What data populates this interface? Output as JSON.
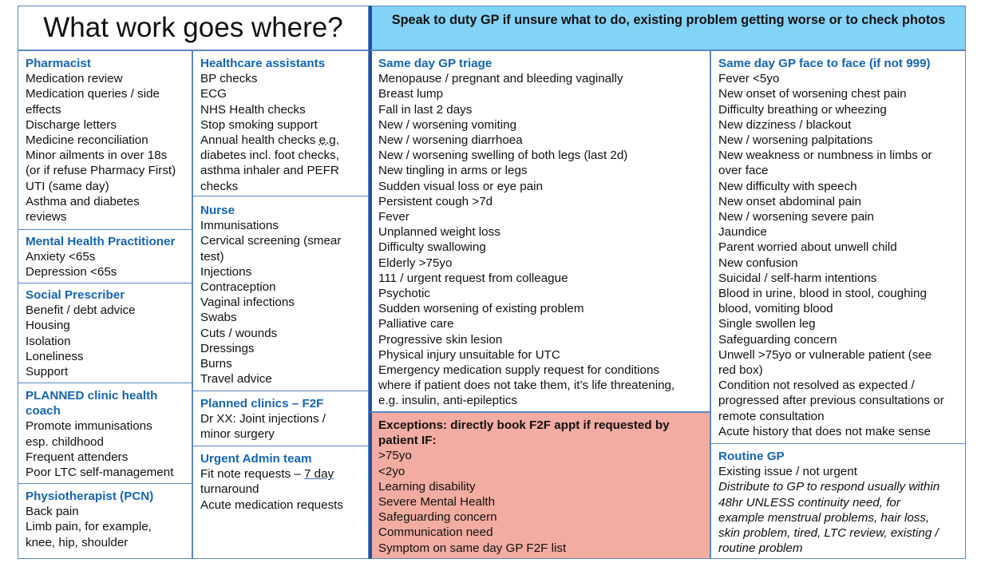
{
  "title": "What work goes where?",
  "banner": "Speak to duty GP if unsure what to do, existing problem getting worse or to check photos",
  "left": {
    "pharmacist": {
      "title": "Pharmacist",
      "items": [
        "Medication review",
        "Medication queries / side",
        "effects",
        "Discharge letters",
        "Medicine reconciliation",
        "Minor ailments in over 18s",
        "(or if refuse Pharmacy First)",
        "UTI (same day)",
        "Asthma and diabetes",
        "reviews"
      ]
    },
    "mental_health": {
      "title": "Mental Health Practitioner",
      "items": [
        "Anxiety <65s",
        "Depression <65s"
      ]
    },
    "social": {
      "title": "Social Prescriber",
      "items": [
        "Benefit / debt advice",
        "Housing",
        "Isolation",
        "Loneliness",
        "Support"
      ]
    },
    "planned_coach": {
      "title_lines": [
        "PLANNED clinic health",
        "coach"
      ],
      "items": [
        "Promote immunisations",
        "esp. childhood",
        "Frequent attenders",
        "Poor LTC self-management"
      ]
    },
    "physio": {
      "title": "Physiotherapist (PCN)",
      "items": [
        "Back pain",
        "Limb pain, for example,",
        "knee, hip, shoulder"
      ]
    }
  },
  "middle": {
    "hca": {
      "title": "Healthcare assistants",
      "items": [
        "BP checks",
        "ECG",
        "NHS Health checks",
        "Stop smoking support"
      ],
      "annual_pre": "Annual health checks ",
      "annual_eg": "e.g.",
      "items2": [
        "diabetes incl. foot checks,",
        "asthma inhaler and PEFR",
        "checks"
      ]
    },
    "nurse": {
      "title": "Nurse",
      "items": [
        "Immunisations",
        "Cervical screening (smear",
        "test)",
        "Injections",
        "Contraception",
        "Vaginal infections",
        "Swabs",
        "Cuts / wounds",
        "Dressings",
        "Burns",
        "Travel advice"
      ]
    },
    "planned_f2f": {
      "title": "Planned clinics – F2F",
      "items": [
        "Dr XX: Joint injections /",
        "minor surgery"
      ]
    },
    "urgent_admin": {
      "title": "Urgent Admin team",
      "fit_pre": "Fit note requests – ",
      "fit_u": "7 day",
      "items": [
        "turnaround",
        "Acute medication requests"
      ]
    }
  },
  "triage": {
    "title": "Same day GP triage",
    "items": [
      "Menopause / pregnant and bleeding vaginally",
      "Breast lump",
      "Fall in last 2 days",
      "New / worsening vomiting",
      "New / worsening diarrhoea",
      "New / worsening swelling of both legs (last 2d)",
      "New tingling in arms or legs",
      "Sudden visual loss or eye pain",
      "Persistent cough >7d",
      "Fever",
      "Unplanned weight loss",
      "Difficulty swallowing",
      "Elderly >75yo",
      "111 / urgent request from colleague",
      "Psychotic",
      "Sudden worsening of existing problem",
      "Palliative care",
      "Progressive skin lesion",
      "Physical injury unsuitable for UTC",
      "Emergency medication supply request for conditions",
      "where if patient does not take them, it’s life threatening,",
      "e.g. insulin, anti-epileptics"
    ]
  },
  "exceptions": {
    "title_lines": [
      "Exceptions: directly book F2F appt if requested by",
      "patient IF:"
    ],
    "items": [
      ">75yo",
      "<2yo",
      "Learning disability",
      "Severe Mental Health",
      "Safeguarding concern",
      "Communication need",
      "Symptom on same day GP F2F list"
    ]
  },
  "f2f": {
    "title": "Same day GP face to face (if not 999)",
    "items": [
      "Fever <5yo",
      "New onset of worsening chest pain",
      "Difficulty breathing or wheezing",
      "New dizziness / blackout",
      "New / worsening palpitations",
      "New weakness or numbness in limbs or",
      "over face",
      "New difficulty with speech",
      "New onset abdominal pain",
      "New / worsening severe pain",
      "Jaundice",
      "Parent worried about unwell child",
      "New confusion",
      "Suicidal / self-harm intentions",
      "Blood in urine, blood in stool, coughing",
      "blood, vomiting blood",
      "Single swollen leg",
      "Safeguarding concern",
      "Unwell >75yo or vulnerable patient (see",
      "red box)",
      "Condition not resolved as expected /",
      "progressed after previous consultations or",
      "remote consultation",
      "Acute history that does not make sense"
    ]
  },
  "routine": {
    "title": "Routine GP",
    "items": [
      "Existing issue / not urgent"
    ],
    "italic": [
      "Distribute to GP to respond usually within",
      "48hr UNLESS continuity need, for",
      "example menstrual problems, hair loss,",
      "skin problem, tired, LTC review, existing /",
      "routine problem"
    ]
  },
  "colors": {
    "border": "#5b87c5",
    "heading_blue": "#1565b6",
    "banner_bg": "#83d3f7",
    "exceptions_bg": "#f2aca1",
    "accent_bar": "#1f4fa0"
  }
}
